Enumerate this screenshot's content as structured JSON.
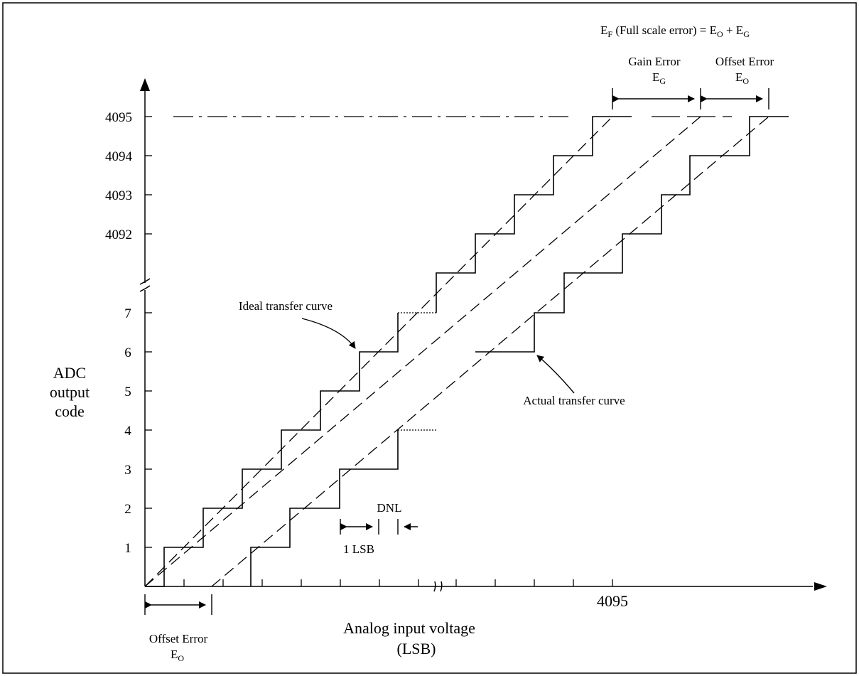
{
  "full_scale": {
    "prefix": "E",
    "prefix_sub": "F",
    "middle": " (Full scale error) = E",
    "middle_sub": "O",
    "plus": " + E",
    "end_sub": "G"
  },
  "gain_error": {
    "line1": "Gain Error",
    "sym": "E",
    "sub": "G"
  },
  "offset_error_top": {
    "line1": "Offset Error",
    "sym": "E",
    "sub": "O"
  },
  "offset_error_bottom": {
    "line1": "Offset Error",
    "sym": "E",
    "sub": "O"
  },
  "y_ticks_top": [
    "4095",
    "4094",
    "4093",
    "4092"
  ],
  "y_ticks_bottom": [
    "7",
    "6",
    "5",
    "4",
    "3",
    "2",
    "1"
  ],
  "y_axis_label": [
    "ADC",
    "output",
    "code"
  ],
  "x_tick_label": "4095",
  "x_axis_label": [
    "Analog input voltage",
    "(LSB)"
  ],
  "ideal_label": "Ideal transfer curve",
  "actual_label": "Actual transfer curve",
  "dnl_label": "DNL",
  "lsb_label": "1 LSB"
}
